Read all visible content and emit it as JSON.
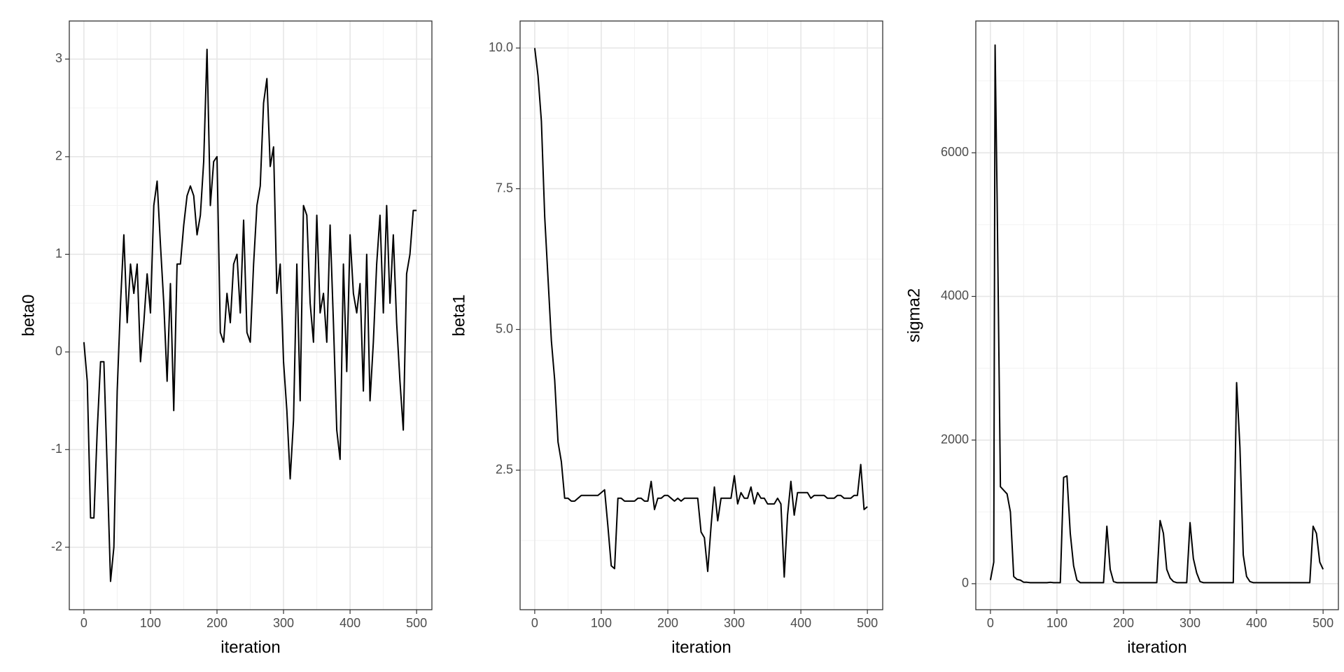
{
  "chart_data": [
    {
      "type": "line",
      "xlabel": "iteration",
      "ylabel": "beta0",
      "color": "#000000",
      "grid": true,
      "xlim": [
        -22,
        523
      ],
      "xticks": [
        0,
        100,
        200,
        300,
        400,
        500
      ],
      "xminor": [
        50,
        150,
        250,
        350,
        450
      ],
      "ylim": [
        -2.64,
        3.39
      ],
      "yticks": [
        -2,
        -1,
        0,
        1,
        2,
        3
      ],
      "yminor": [
        -1.5,
        -0.5,
        0.5,
        1.5,
        2.5
      ],
      "x": [
        0,
        5,
        10,
        15,
        20,
        25,
        30,
        35,
        40,
        45,
        50,
        55,
        60,
        65,
        70,
        75,
        80,
        85,
        90,
        95,
        100,
        105,
        110,
        115,
        120,
        125,
        130,
        135,
        140,
        145,
        150,
        155,
        160,
        165,
        170,
        175,
        180,
        185,
        190,
        195,
        200,
        205,
        210,
        215,
        220,
        225,
        230,
        235,
        240,
        245,
        250,
        255,
        260,
        265,
        270,
        275,
        280,
        285,
        290,
        295,
        300,
        305,
        310,
        315,
        320,
        325,
        330,
        335,
        340,
        345,
        350,
        355,
        360,
        365,
        370,
        375,
        380,
        385,
        390,
        395,
        400,
        405,
        410,
        415,
        420,
        425,
        430,
        435,
        440,
        445,
        450,
        455,
        460,
        465,
        470,
        475,
        480,
        485,
        490,
        495,
        500
      ],
      "values": [
        0.1,
        -0.3,
        -1.7,
        -1.7,
        -0.8,
        -0.1,
        -0.1,
        -1.2,
        -2.35,
        -2.0,
        -0.4,
        0.5,
        1.2,
        0.3,
        0.9,
        0.6,
        0.9,
        -0.1,
        0.3,
        0.8,
        0.4,
        1.5,
        1.75,
        1.1,
        0.5,
        -0.3,
        0.7,
        -0.6,
        0.9,
        0.9,
        1.3,
        1.6,
        1.7,
        1.6,
        1.2,
        1.4,
        1.95,
        3.1,
        1.5,
        1.95,
        2.0,
        0.2,
        0.1,
        0.6,
        0.3,
        0.9,
        1.0,
        0.4,
        1.35,
        0.2,
        0.1,
        0.9,
        1.5,
        1.7,
        2.55,
        2.8,
        1.9,
        2.1,
        0.6,
        0.9,
        -0.1,
        -0.6,
        -1.3,
        -0.7,
        0.9,
        -0.5,
        1.5,
        1.4,
        0.5,
        0.1,
        1.4,
        0.4,
        0.6,
        0.1,
        1.3,
        0.3,
        -0.8,
        -1.1,
        0.9,
        -0.2,
        1.2,
        0.6,
        0.4,
        0.7,
        -0.4,
        1.0,
        -0.5,
        0.1,
        0.9,
        1.4,
        0.4,
        1.5,
        0.5,
        1.2,
        0.3,
        -0.3,
        -0.8,
        0.8,
        1.0,
        1.45,
        1.45
      ]
    },
    {
      "type": "line",
      "xlabel": "iteration",
      "ylabel": "beta1",
      "color": "#000000",
      "grid": true,
      "xlim": [
        -22,
        523
      ],
      "xticks": [
        0,
        100,
        200,
        300,
        400,
        500
      ],
      "xminor": [
        50,
        150,
        250,
        350,
        450
      ],
      "ylim": [
        0.02,
        10.48
      ],
      "yticks": [
        {
          "value": 10,
          "label": "10.0"
        },
        7.5,
        {
          "value": 5,
          "label": "5.0"
        },
        2.5
      ],
      "yminor": [
        1.25,
        3.75,
        6.25,
        8.75
      ],
      "x": [
        0,
        5,
        10,
        15,
        20,
        25,
        30,
        35,
        40,
        45,
        50,
        55,
        60,
        65,
        70,
        75,
        80,
        85,
        90,
        95,
        100,
        105,
        110,
        115,
        120,
        125,
        130,
        135,
        140,
        145,
        150,
        155,
        160,
        165,
        170,
        175,
        180,
        185,
        190,
        195,
        200,
        205,
        210,
        215,
        220,
        225,
        230,
        235,
        240,
        245,
        250,
        255,
        260,
        265,
        270,
        275,
        280,
        285,
        290,
        295,
        300,
        305,
        310,
        315,
        320,
        325,
        330,
        335,
        340,
        345,
        350,
        355,
        360,
        365,
        370,
        375,
        380,
        385,
        390,
        395,
        400,
        405,
        410,
        415,
        420,
        425,
        430,
        435,
        440,
        445,
        450,
        455,
        460,
        465,
        470,
        475,
        480,
        485,
        490,
        495,
        500
      ],
      "values": [
        10.0,
        9.5,
        8.7,
        7.0,
        5.9,
        4.8,
        4.1,
        3.0,
        2.65,
        2.0,
        2.0,
        1.95,
        1.95,
        2.0,
        2.05,
        2.05,
        2.05,
        2.05,
        2.05,
        2.05,
        2.1,
        2.15,
        1.5,
        0.8,
        0.75,
        2.0,
        2.0,
        1.95,
        1.95,
        1.95,
        1.95,
        2.0,
        2.0,
        1.95,
        1.95,
        2.3,
        1.8,
        2.0,
        2.0,
        2.05,
        2.05,
        2.0,
        1.95,
        2.0,
        1.95,
        2.0,
        2.0,
        2.0,
        2.0,
        2.0,
        1.4,
        1.3,
        0.7,
        1.5,
        2.2,
        1.6,
        2.0,
        2.0,
        2.0,
        2.0,
        2.4,
        1.9,
        2.1,
        2.0,
        2.0,
        2.2,
        1.9,
        2.1,
        2.0,
        2.0,
        1.9,
        1.9,
        1.9,
        2.0,
        1.9,
        0.6,
        1.7,
        2.3,
        1.7,
        2.1,
        2.1,
        2.1,
        2.1,
        2.0,
        2.05,
        2.05,
        2.05,
        2.05,
        2.0,
        2.0,
        2.0,
        2.05,
        2.05,
        2.0,
        2.0,
        2.0,
        2.05,
        2.05,
        2.6,
        1.8,
        1.85
      ]
    },
    {
      "type": "line",
      "xlabel": "iteration",
      "ylabel": "sigma2",
      "color": "#000000",
      "grid": true,
      "xlim": [
        -22,
        523
      ],
      "xticks": [
        0,
        100,
        200,
        300,
        400,
        500
      ],
      "xminor": [
        50,
        150,
        250,
        350,
        450
      ],
      "ylim": [
        -362,
        7835
      ],
      "yticks": [
        0,
        2000,
        4000,
        6000
      ],
      "yminor": [
        1000,
        3000,
        5000,
        7000
      ],
      "x": [
        0,
        5,
        7,
        10,
        15,
        20,
        25,
        30,
        35,
        40,
        45,
        50,
        55,
        60,
        65,
        70,
        75,
        80,
        85,
        90,
        95,
        100,
        105,
        110,
        115,
        120,
        125,
        130,
        135,
        140,
        145,
        150,
        155,
        160,
        165,
        170,
        175,
        180,
        185,
        190,
        195,
        200,
        205,
        210,
        215,
        220,
        225,
        230,
        235,
        240,
        245,
        250,
        255,
        260,
        265,
        270,
        275,
        280,
        285,
        290,
        295,
        300,
        305,
        310,
        315,
        320,
        325,
        330,
        335,
        340,
        345,
        350,
        355,
        360,
        365,
        370,
        375,
        380,
        385,
        390,
        395,
        400,
        405,
        410,
        415,
        420,
        425,
        430,
        435,
        440,
        445,
        450,
        455,
        460,
        465,
        470,
        475,
        480,
        485,
        490,
        495,
        500
      ],
      "values": [
        50,
        300,
        7500,
        5400,
        1350,
        1300,
        1250,
        1000,
        100,
        60,
        50,
        20,
        20,
        15,
        15,
        15,
        15,
        15,
        15,
        20,
        15,
        15,
        15,
        1480,
        1500,
        700,
        250,
        50,
        15,
        15,
        15,
        15,
        15,
        15,
        15,
        15,
        800,
        200,
        30,
        15,
        15,
        15,
        15,
        15,
        15,
        15,
        15,
        15,
        15,
        15,
        15,
        15,
        880,
        700,
        200,
        80,
        30,
        15,
        15,
        15,
        15,
        850,
        350,
        150,
        30,
        15,
        15,
        15,
        15,
        15,
        15,
        15,
        15,
        15,
        15,
        2800,
        1900,
        400,
        100,
        30,
        15,
        15,
        15,
        15,
        15,
        15,
        15,
        15,
        15,
        15,
        15,
        15,
        15,
        15,
        15,
        15,
        15,
        15,
        800,
        700,
        300,
        200
      ]
    }
  ]
}
